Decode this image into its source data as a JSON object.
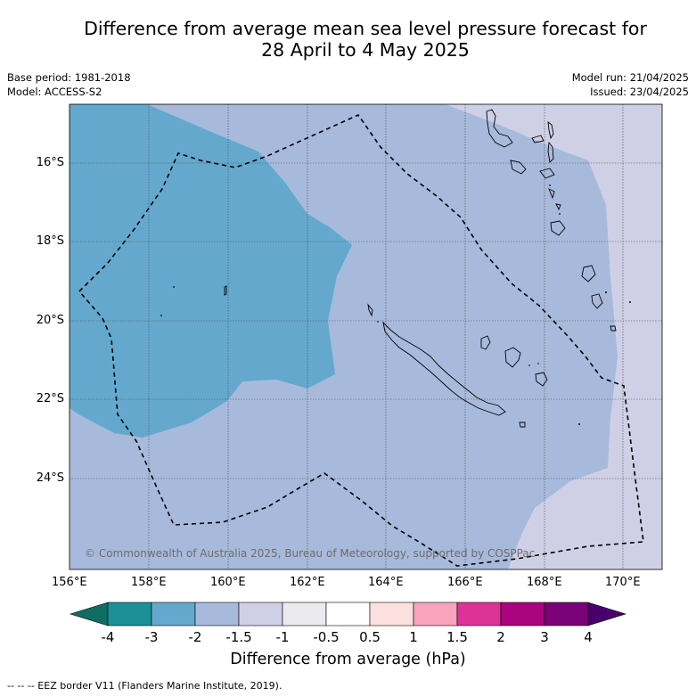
{
  "title_line1": "Difference from average mean sea level pressure forecast for",
  "title_line2": "28 April to 4 May 2025",
  "base_period": "Base period: 1981-2018",
  "model": "Model: ACCESS-S2",
  "model_run": "Model run: 21/04/2025",
  "issued": "Issued: 23/04/2025",
  "copyright": "© Commonwealth of Australia 2025, Bureau of Meteorology, supported by COSPPac",
  "footer": "--  --  -- EEZ border V11 (Flanders Marine Institute, 2019).",
  "lon_labels": [
    "156°E",
    "158°E",
    "160°E",
    "162°E",
    "164°E",
    "166°E",
    "168°E",
    "170°E"
  ],
  "lat_labels": [
    "16°S",
    "18°S",
    "20°S",
    "22°S",
    "24°S"
  ],
  "colorbar": {
    "title": "Difference from average (hPa)",
    "labels": [
      "-4",
      "-3",
      "-2",
      "-1.5",
      "-1",
      "-0.5",
      "0.5",
      "1",
      "1.5",
      "2",
      "3",
      "4"
    ],
    "colors": [
      "#1d8f97",
      "#64a9cd",
      "#a8badb",
      "#cfd0e6",
      "#ebebef",
      "#ffffff",
      "#fde0e0",
      "#f9a3bc",
      "#dd3397",
      "#ab047f",
      "#7a0177"
    ],
    "under_color": "#0e6e63",
    "over_color": "#49006a"
  },
  "map": {
    "extent_lon": [
      156,
      171
    ],
    "extent_lat": [
      -26.0,
      -14.6
    ],
    "background_color": "#cfd0e6",
    "regions": [
      {
        "level": "-2 to -1.5",
        "color": "#a8badb"
      },
      {
        "level": "-3 to -2",
        "color": "#64a9cd"
      }
    ]
  }
}
